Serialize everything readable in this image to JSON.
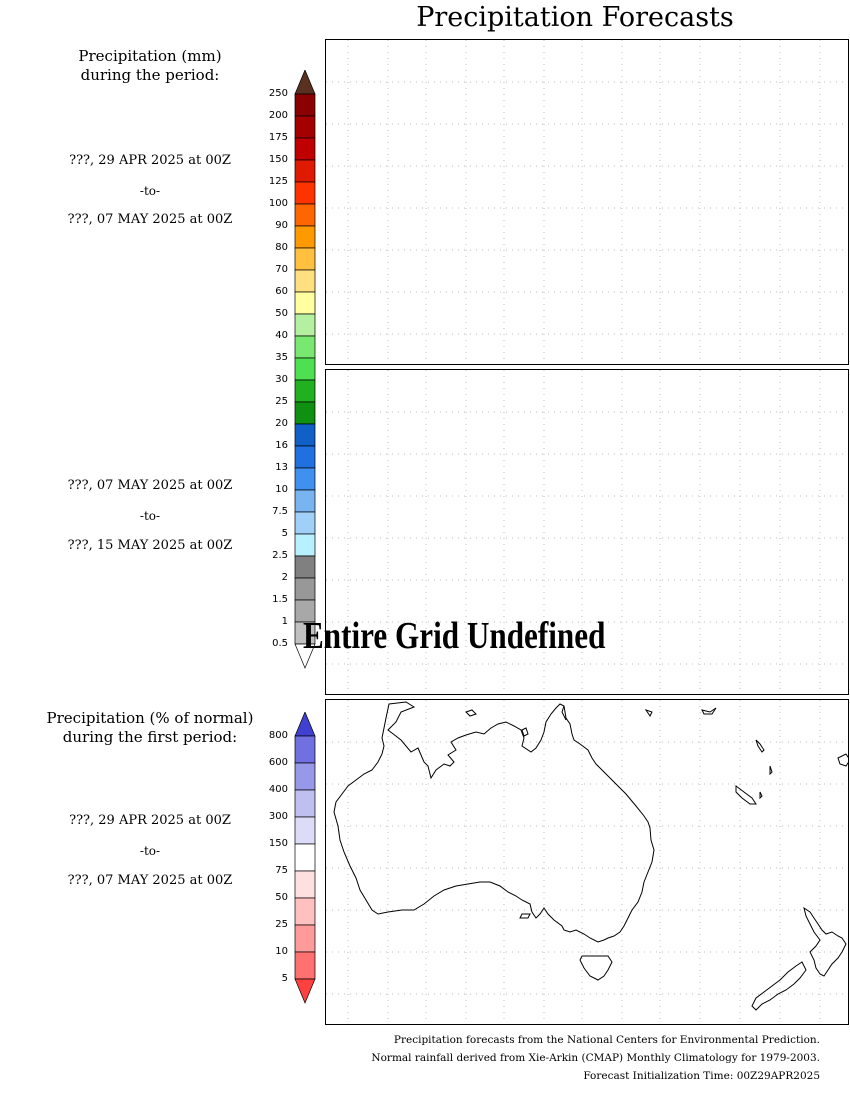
{
  "title": "Precipitation Forecasts",
  "precip_header": "Precipitation (mm)\nduring the period:",
  "period1": {
    "start": "???, 29 APR 2025 at 00Z",
    "to": "-to-",
    "end": "???, 07 MAY 2025 at 00Z"
  },
  "period2": {
    "start": "???, 07 MAY 2025 at 00Z",
    "to": "-to-",
    "end": "???, 15 MAY 2025 at 00Z"
  },
  "pct_header": "Precipitation (% of normal)\nduring the first period:",
  "period3": {
    "start": "???, 29 APR 2025 at 00Z",
    "to": "-to-",
    "end": "???, 07 MAY 2025 at 00Z"
  },
  "undefined_message": "Entire Grid Undefined",
  "precip_scale": {
    "labels": [
      "250",
      "200",
      "175",
      "150",
      "125",
      "100",
      "90",
      "80",
      "70",
      "60",
      "50",
      "40",
      "35",
      "30",
      "25",
      "20",
      "16",
      "13",
      "10",
      "7.5",
      "5",
      "2.5",
      "2",
      "1.5",
      "1",
      "0.5"
    ],
    "colors": [
      "#5a3020",
      "#8b0000",
      "#a50000",
      "#c00000",
      "#e01a00",
      "#ff3300",
      "#ff6600",
      "#ff9900",
      "#ffc040",
      "#ffe080",
      "#ffffa0",
      "#b4f0a0",
      "#78e870",
      "#4ee050",
      "#20b020",
      "#109010",
      "#1060c8",
      "#2070e0",
      "#4090f0",
      "#78b4f0",
      "#a0d0f8",
      "#b8f0ff",
      "#808080",
      "#989898",
      "#a8a8a8",
      "#c0c0c0",
      "#ffffff"
    ]
  },
  "pct_scale": {
    "labels": [
      "800",
      "600",
      "400",
      "300",
      "150",
      "75",
      "50",
      "25",
      "10",
      "5"
    ],
    "colors": [
      "#4040d0",
      "#7070e0",
      "#9898e8",
      "#c0c0f0",
      "#dcdcf8",
      "#ffffff",
      "#ffe0e0",
      "#ffc0c0",
      "#ff9a9a",
      "#ff7070",
      "#ff4040"
    ]
  },
  "footer": [
    "Precipitation forecasts from the National Centers for Environmental Prediction.",
    "Normal rainfall derived from Xie-Arkin (CMAP) Monthly Climatology for 1979-2003.",
    "Forecast Initialization Time: 00Z29APR2025"
  ]
}
